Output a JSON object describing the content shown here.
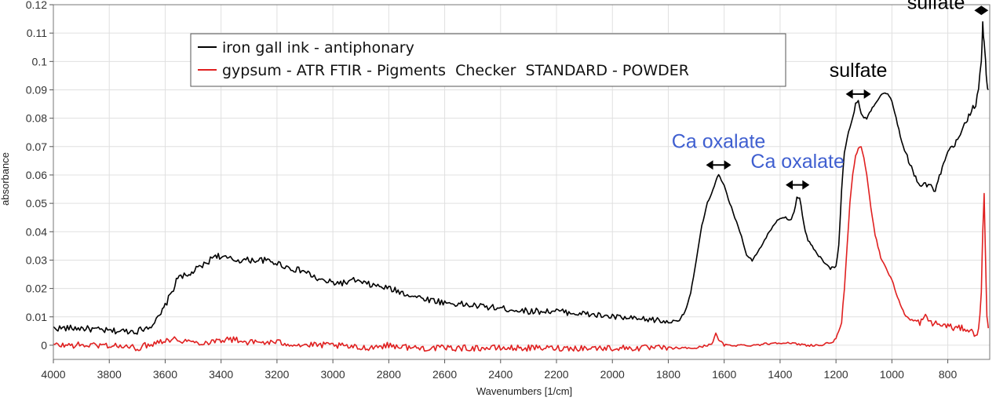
{
  "chart_data": {
    "type": "line",
    "title": "",
    "xlabel": "Wavenumbers [1/cm]",
    "ylabel": "absorbance",
    "xlim": [
      4000,
      650
    ],
    "ylim": [
      -0.005,
      0.12
    ],
    "x_reversed": true,
    "grid": true,
    "legend_position": "top-center",
    "x_ticks": [
      4000,
      3800,
      3600,
      3400,
      3200,
      3000,
      2800,
      2600,
      2400,
      2200,
      2000,
      1800,
      1600,
      1400,
      1200,
      1000,
      800
    ],
    "y_ticks": [
      {
        "value": 0,
        "label": "0"
      },
      {
        "value": 0.01,
        "label": "0.01"
      },
      {
        "value": 0.02,
        "label": "0.02"
      },
      {
        "value": 0.03,
        "label": "0.03"
      },
      {
        "value": 0.04,
        "label": "0.04"
      },
      {
        "value": 0.05,
        "label": "0.05"
      },
      {
        "value": 0.06,
        "label": "0.06"
      },
      {
        "value": 0.07,
        "label": "0.07"
      },
      {
        "value": 0.08,
        "label": "0.08"
      },
      {
        "value": 0.09,
        "label": "0.09"
      },
      {
        "value": 0.1,
        "label": "0.1"
      },
      {
        "value": 0.11,
        "label": "0.11"
      },
      {
        "value": 0.12,
        "label": "0.12"
      }
    ],
    "series": [
      {
        "name": "iron gall ink - antiphonary",
        "color": "#000000",
        "x": [
          4000,
          3900,
          3800,
          3700,
          3650,
          3620,
          3600,
          3570,
          3550,
          3520,
          3500,
          3450,
          3420,
          3400,
          3350,
          3300,
          3250,
          3200,
          3150,
          3100,
          3050,
          3000,
          2950,
          2920,
          2900,
          2850,
          2800,
          2700,
          2600,
          2500,
          2400,
          2300,
          2200,
          2100,
          2000,
          1900,
          1850,
          1800,
          1760,
          1740,
          1720,
          1700,
          1680,
          1660,
          1640,
          1630,
          1620,
          1600,
          1580,
          1550,
          1520,
          1500,
          1480,
          1450,
          1420,
          1400,
          1380,
          1360,
          1350,
          1340,
          1330,
          1320,
          1310,
          1300,
          1280,
          1250,
          1220,
          1200,
          1190,
          1180,
          1170,
          1160,
          1150,
          1140,
          1130,
          1120,
          1110,
          1100,
          1090,
          1080,
          1060,
          1040,
          1020,
          1000,
          980,
          960,
          940,
          920,
          900,
          880,
          860,
          850,
          840,
          820,
          800,
          780,
          760,
          740,
          720,
          700,
          690,
          680,
          675,
          670,
          665,
          660,
          655
        ],
        "y": [
          0.006,
          0.006,
          0.005,
          0.005,
          0.007,
          0.01,
          0.014,
          0.02,
          0.025,
          0.024,
          0.026,
          0.029,
          0.032,
          0.031,
          0.03,
          0.03,
          0.03,
          0.029,
          0.027,
          0.026,
          0.023,
          0.022,
          0.022,
          0.023,
          0.022,
          0.021,
          0.02,
          0.017,
          0.015,
          0.014,
          0.013,
          0.012,
          0.012,
          0.011,
          0.01,
          0.009,
          0.009,
          0.008,
          0.009,
          0.012,
          0.018,
          0.03,
          0.042,
          0.05,
          0.055,
          0.058,
          0.06,
          0.056,
          0.05,
          0.042,
          0.032,
          0.03,
          0.033,
          0.038,
          0.043,
          0.045,
          0.045,
          0.044,
          0.047,
          0.052,
          0.052,
          0.046,
          0.04,
          0.037,
          0.034,
          0.03,
          0.027,
          0.028,
          0.035,
          0.055,
          0.068,
          0.073,
          0.077,
          0.08,
          0.085,
          0.086,
          0.082,
          0.08,
          0.08,
          0.082,
          0.085,
          0.088,
          0.089,
          0.086,
          0.078,
          0.07,
          0.065,
          0.06,
          0.057,
          0.057,
          0.056,
          0.054,
          0.056,
          0.062,
          0.068,
          0.07,
          0.073,
          0.078,
          0.082,
          0.085,
          0.09,
          0.1,
          0.113,
          0.106,
          0.1,
          0.092,
          0.09
        ]
      },
      {
        "name": "gypsum - ATR FTIR - Pigments  Checker  STANDARD - POWDER",
        "color": "#e02020",
        "x": [
          4000,
          3900,
          3800,
          3700,
          3600,
          3550,
          3500,
          3450,
          3400,
          3350,
          3300,
          3200,
          3100,
          3000,
          2900,
          2800,
          2700,
          2600,
          2500,
          2400,
          2300,
          2200,
          2100,
          2000,
          1900,
          1800,
          1700,
          1660,
          1640,
          1630,
          1620,
          1600,
          1580,
          1500,
          1400,
          1300,
          1250,
          1220,
          1200,
          1180,
          1170,
          1160,
          1150,
          1140,
          1130,
          1120,
          1110,
          1100,
          1090,
          1080,
          1060,
          1040,
          1020,
          1000,
          980,
          960,
          940,
          900,
          880,
          860,
          820,
          800,
          780,
          760,
          740,
          720,
          700,
          690,
          680,
          675,
          670,
          665,
          660,
          655
        ],
        "y": [
          0,
          0,
          0,
          -0.001,
          0.002,
          0.002,
          0.001,
          0.001,
          0.002,
          0.002,
          0.001,
          0.001,
          0,
          0,
          -0.001,
          0,
          -0.001,
          -0.001,
          -0.001,
          -0.001,
          -0.001,
          -0.001,
          -0.001,
          -0.001,
          -0.001,
          -0.001,
          -0.001,
          0,
          0.001,
          0.004,
          0.002,
          0,
          0,
          0,
          0.001,
          0,
          0,
          0.001,
          0.002,
          0.008,
          0.02,
          0.035,
          0.05,
          0.06,
          0.067,
          0.069,
          0.07,
          0.066,
          0.06,
          0.052,
          0.039,
          0.031,
          0.027,
          0.023,
          0.017,
          0.012,
          0.009,
          0.008,
          0.01,
          0.008,
          0.007,
          0.007,
          0.006,
          0.006,
          0.006,
          0.005,
          0.004,
          0.005,
          0.018,
          0.04,
          0.054,
          0.03,
          0.01,
          0.006
        ]
      }
    ],
    "annotations": [
      {
        "text": "Ca oxalate",
        "color": "#3f5fd0",
        "x1": 1665,
        "x2": 1575,
        "y_arrow": 0.0635,
        "y_text": 0.0695
      },
      {
        "text": "Ca oxalate",
        "color": "#3f5fd0",
        "x1": 1380,
        "x2": 1295,
        "y_arrow": 0.0565,
        "y_text": 0.0625
      },
      {
        "text": "sulfate",
        "color": "#000000",
        "x1": 1165,
        "x2": 1075,
        "y_arrow": 0.0885,
        "y_text": 0.0945
      },
      {
        "text": "sulfate",
        "color": "#000000",
        "x1": 705,
        "x2": 655,
        "y_arrow": 0.118,
        "y_text": 0.1185
      }
    ]
  }
}
